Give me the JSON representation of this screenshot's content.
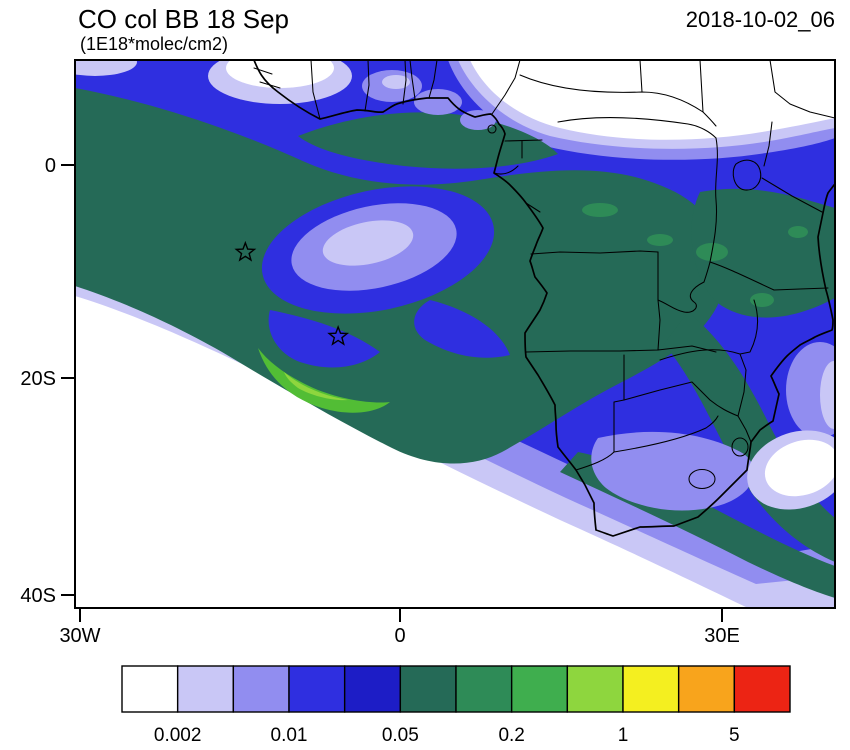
{
  "header": {
    "title": "CO col BB 18 Sep",
    "subtitle": "(1E18*molec/cm2)",
    "timestamp": "2018-10-02_06"
  },
  "axes": {
    "y_ticks": [
      "0",
      "20S",
      "40S"
    ],
    "x_ticks": [
      "30W",
      "0",
      "30E"
    ]
  },
  "colorbar": {
    "orientation": "horizontal",
    "position": "bottom",
    "labels": [
      "0.002",
      "0.01",
      "0.05",
      "0.2",
      "1",
      "5"
    ],
    "levels": [
      0.002,
      0.005,
      0.01,
      0.02,
      0.05,
      0.1,
      0.2,
      0.5,
      1,
      2,
      5
    ],
    "colors": [
      "#ffffff",
      "#c9c7f6",
      "#918df0",
      "#2f2fe0",
      "#1d1dc6",
      "#256a57",
      "#2e8b57",
      "#3fae4e",
      "#8ed63e",
      "#f4ef20",
      "#f8a41c",
      "#ec2414"
    ]
  },
  "chart_data": {
    "type": "heatmap",
    "title": "CO col BB 18 Sep",
    "units": "1E18*molec/cm2",
    "timestamp": "2018-10-02_06",
    "projection": "lat-lon map of Africa and South Atlantic",
    "lon_range": [
      -31,
      41
    ],
    "lat_range": [
      -41.5,
      10
    ],
    "lon_ticks": [
      {
        "label": "30W",
        "value": -30
      },
      {
        "label": "0",
        "value": 0
      },
      {
        "label": "30E",
        "value": 30
      }
    ],
    "lat_ticks": [
      {
        "label": "0",
        "value": 0
      },
      {
        "label": "20S",
        "value": -20
      },
      {
        "label": "40S",
        "value": -40
      }
    ],
    "contour_levels": [
      0.002,
      0.005,
      0.01,
      0.02,
      0.05,
      0.1,
      0.2,
      0.5,
      1,
      2,
      5
    ],
    "palette": [
      "#ffffff",
      "#c9c7f6",
      "#918df0",
      "#2f2fe0",
      "#1d1dc6",
      "#256a57",
      "#2e8b57",
      "#3fae4e",
      "#8ed63e",
      "#f4ef20",
      "#f8a41c",
      "#ec2414"
    ],
    "legend_position": "bottom",
    "grid": false,
    "markers": [
      {
        "type": "star",
        "lon": -14.5,
        "lat": -8.2
      },
      {
        "type": "star",
        "lon": -5.8,
        "lat": -16.1
      }
    ],
    "features": [
      "Broad biomass-burning CO plume (~0.05-0.2) stretching from the tropical South Atlantic across Angola, DRC, Zambia and toward the southwest Indian Ocean",
      "Lighter circular minimum (~0.005-0.01) centered near 14W, 8S inside the plume",
      "Narrow enhanced green filament (~0.2-0.5) near 5W, 21S",
      "Clean air (<0.002, white) over the Sahel/NE Africa and the far southeastern South Atlantic",
      "Light (0.002-0.01) air over interior South Africa and off its east coast"
    ]
  }
}
